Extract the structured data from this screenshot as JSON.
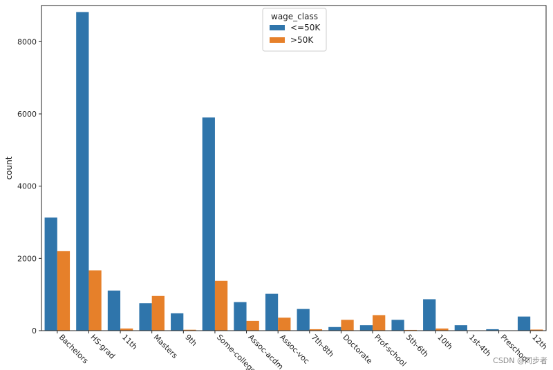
{
  "chart_data": {
    "type": "bar",
    "categories": [
      "Bachelors",
      "HS-grad",
      "11th",
      "Masters",
      "9th",
      "Some-college",
      "Assoc-acdm",
      "Assoc-voc",
      "7th-8th",
      "Doctorate",
      "Prof-school",
      "5th-6th",
      "10th",
      "1st-4th",
      "Preschool",
      "12th"
    ],
    "series": [
      {
        "name": "<=50K",
        "color": "#2f75ab",
        "values": [
          3130,
          8820,
          1110,
          760,
          480,
          5900,
          790,
          1020,
          600,
          100,
          150,
          300,
          870,
          150,
          40,
          390
        ]
      },
      {
        "name": ">50K",
        "color": "#e6802a",
        "values": [
          2200,
          1670,
          60,
          960,
          25,
          1380,
          270,
          360,
          40,
          300,
          430,
          20,
          60,
          10,
          0,
          30
        ]
      }
    ],
    "xlabel": "",
    "ylabel": "count",
    "ylim": [
      0,
      9000
    ],
    "yticks": [
      0,
      2000,
      4000,
      6000,
      8000
    ],
    "legend": {
      "title": "wage_class",
      "placement": "top-center"
    },
    "grid": false
  },
  "watermark": "CSDN @同步者"
}
